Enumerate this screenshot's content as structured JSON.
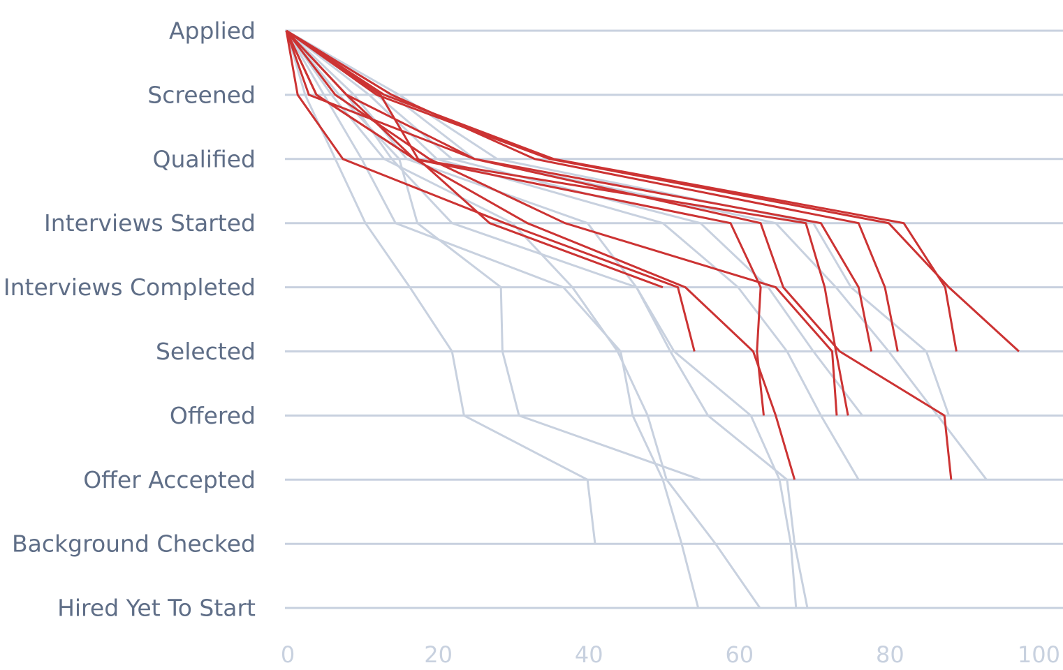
{
  "chart_data": {
    "type": "line",
    "categories": [
      "Applied",
      "Screened",
      "Qualified",
      "Interviews Started",
      "Interviews Completed",
      "Selected",
      "Offered",
      "Offer Accepted",
      "Background Checked",
      "Hired Yet To Start"
    ],
    "xlim": [
      0,
      100
    ],
    "xticks": [
      0,
      20,
      40,
      60,
      80,
      100
    ],
    "grid": true,
    "series": [
      {
        "color": "#c8d1df",
        "values": [
          0,
          2.5,
          6.5,
          10.5,
          16.4,
          22,
          23.6,
          40,
          41,
          null
        ]
      },
      {
        "color": "#c8d1df",
        "values": [
          0,
          5,
          10,
          14.5,
          36.8,
          44.4,
          46,
          50,
          52.5,
          54.7
        ]
      },
      {
        "color": "#c8d1df",
        "values": [
          0,
          7,
          15,
          17.4,
          28.5,
          28.7,
          30.9,
          55,
          null,
          null
        ]
      },
      {
        "color": "#c8d1df",
        "values": [
          0,
          6,
          13,
          30,
          38,
          44,
          48,
          50.5,
          57,
          62.9
        ]
      },
      {
        "color": "#c8d1df",
        "values": [
          0,
          8,
          14,
          22,
          46.5,
          51.5,
          61.7,
          65.5,
          67,
          67.7
        ]
      },
      {
        "color": "#c8d1df",
        "values": [
          0,
          9,
          16,
          40,
          46.5,
          51,
          56,
          66.5,
          67.5,
          69.2
        ]
      },
      {
        "color": "#c8d1df",
        "values": [
          0,
          11,
          20,
          50,
          60,
          66.5,
          71,
          76,
          null,
          null
        ]
      },
      {
        "color": "#c8d1df",
        "values": [
          0,
          12,
          22,
          55,
          64,
          70,
          76.5,
          null,
          null,
          null
        ]
      },
      {
        "color": "#c8d1df",
        "values": [
          0,
          14,
          25,
          65,
          73,
          80,
          86.5,
          93,
          null,
          null
        ]
      },
      {
        "color": "#c8d1df",
        "values": [
          0,
          15,
          28,
          70,
          75,
          85,
          88,
          null,
          null,
          null
        ]
      },
      {
        "color": "#cc3333",
        "values": [
          0,
          12,
          35,
          80,
          88,
          97.3,
          null,
          null,
          null,
          null
        ]
      },
      {
        "color": "#cc3333",
        "values": [
          0,
          13,
          35.5,
          82,
          87.5,
          89,
          null,
          null,
          null,
          null
        ]
      },
      {
        "color": "#cc3333",
        "values": [
          0,
          14,
          33,
          76,
          79.5,
          81.2,
          null,
          null,
          null,
          null
        ]
      },
      {
        "color": "#cc3333",
        "values": [
          0,
          8,
          25,
          71,
          76,
          77.7,
          null,
          null,
          null,
          null
        ]
      },
      {
        "color": "#cc3333",
        "values": [
          0,
          4,
          17,
          69,
          71.5,
          73,
          74.6,
          null,
          null,
          null
        ]
      },
      {
        "color": "#cc3333",
        "values": [
          0,
          3,
          25,
          63,
          66,
          73.5,
          87.4,
          88.3,
          null,
          null
        ]
      },
      {
        "color": "#cc3333",
        "values": [
          0,
          8,
          17,
          59,
          63,
          62.5,
          63.4,
          null,
          null,
          null
        ]
      },
      {
        "color": "#cc3333",
        "values": [
          0,
          6.5,
          19,
          37,
          65,
          72.5,
          73.1,
          null,
          null,
          null
        ]
      },
      {
        "color": "#cc3333",
        "values": [
          0,
          1.5,
          7.5,
          29,
          52,
          54.2,
          null,
          null,
          null,
          null
        ]
      },
      {
        "color": "#cc3333",
        "values": [
          0,
          4,
          17,
          32,
          53,
          62,
          65,
          67.5,
          null,
          null
        ]
      },
      {
        "color": "#cc3333",
        "values": [
          0,
          12.5,
          17.5,
          27,
          50,
          null,
          null,
          null,
          null,
          null
        ]
      }
    ]
  }
}
